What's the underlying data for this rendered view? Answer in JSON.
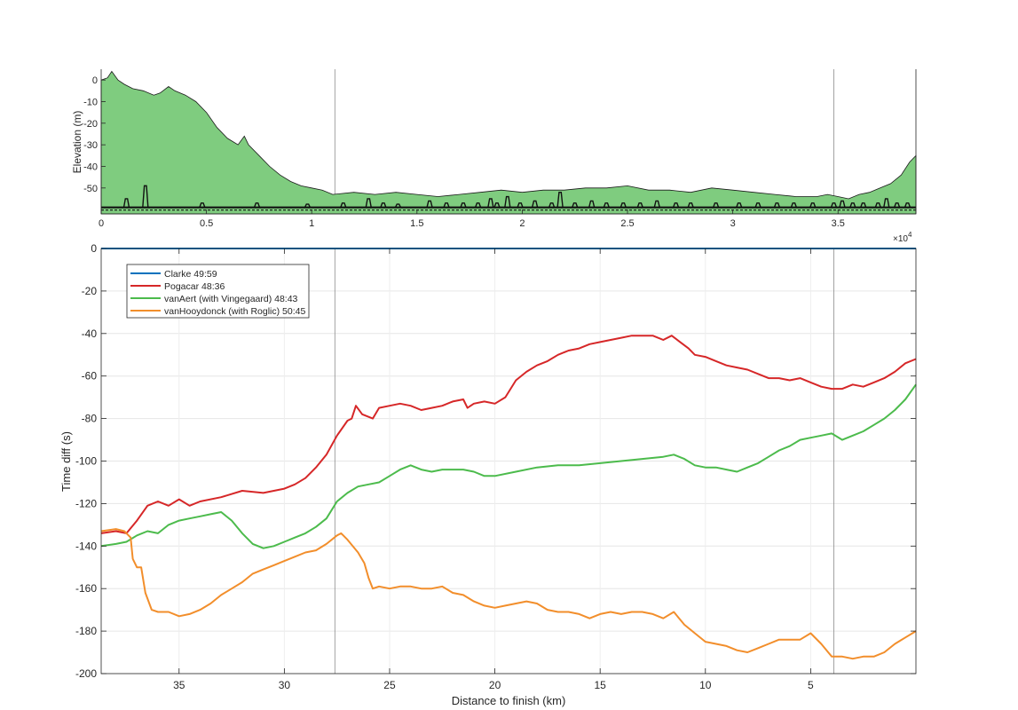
{
  "chart_data": [
    {
      "type": "area",
      "xlabel": "",
      "ylabel": "Elevation (m)",
      "xlim": [
        0,
        38700
      ],
      "ylim": [
        -62,
        5
      ],
      "x_ticks": [
        0,
        5000,
        10000,
        15000,
        20000,
        25000,
        30000,
        35000
      ],
      "x_tick_labels": [
        "0",
        "0.5",
        "1",
        "1.5",
        "2",
        "2.5",
        "3",
        "3.5"
      ],
      "x_exponent_label": "×10",
      "x_exponent_power": "4",
      "y_ticks": [
        0,
        -10,
        -20,
        -30,
        -40,
        -50
      ],
      "y_tick_labels": [
        "0",
        "-10",
        "-20",
        "-30",
        "-40",
        "-50"
      ],
      "colors": {
        "fill": "#7fcc7f",
        "line": "#1a1a1a",
        "markers": "#111111"
      },
      "x": [
        0,
        300,
        500,
        800,
        1100,
        1500,
        2000,
        2500,
        2800,
        3200,
        3500,
        4000,
        4500,
        5000,
        5500,
        6000,
        6500,
        6800,
        7000,
        7500,
        8000,
        8500,
        9000,
        9500,
        10000,
        10500,
        11000,
        12000,
        13000,
        14000,
        15000,
        16000,
        17000,
        18000,
        19000,
        20000,
        21000,
        22000,
        23000,
        24000,
        25000,
        26000,
        27000,
        28000,
        29000,
        30000,
        31000,
        32000,
        33000,
        34000,
        34500,
        35000,
        35500,
        36000,
        36500,
        37000,
        37500,
        38000,
        38400,
        38700
      ],
      "values": [
        0,
        1,
        4,
        0,
        -2,
        -4,
        -5,
        -7,
        -6,
        -3,
        -5,
        -7,
        -10,
        -15,
        -22,
        -27,
        -30,
        -26,
        -30,
        -35,
        -40,
        -44,
        -47,
        -49,
        -50,
        -51,
        -53,
        -52,
        -53,
        -52,
        -53,
        -54,
        -53,
        -52,
        -51,
        -52,
        -51,
        -51,
        -50,
        -50,
        -49,
        -51,
        -51,
        -52,
        -50,
        -51,
        -52,
        -53,
        -54,
        -54,
        -53,
        -54,
        -55,
        -53,
        -52,
        -50,
        -48,
        -44,
        -38,
        -35
      ],
      "marker_baseline": -59,
      "marker_x": [
        1200,
        2100,
        4800,
        7400,
        9800,
        11500,
        12700,
        13400,
        14100,
        15600,
        16400,
        17200,
        17900,
        18500,
        18800,
        19300,
        19900,
        20600,
        21400,
        21800,
        22500,
        23300,
        24000,
        24800,
        25600,
        26400,
        27300,
        28000,
        29200,
        30300,
        31200,
        32100,
        32900,
        33800,
        34800,
        35200,
        35700,
        36200,
        36900,
        37300,
        37800,
        38300
      ],
      "marker_h": [
        4,
        10,
        2,
        2,
        1.5,
        2,
        4,
        2,
        1.5,
        3,
        2,
        2,
        2,
        4,
        2,
        5,
        2,
        3,
        2,
        7,
        2,
        3,
        2,
        2,
        2,
        3,
        2,
        2,
        2,
        2,
        2,
        2,
        2,
        2,
        2,
        3,
        2,
        2,
        2,
        4,
        2,
        2
      ]
    },
    {
      "type": "line",
      "xlabel": "Distance to finish (km)",
      "ylabel": "Time diff (s)",
      "xlim": [
        38.7,
        0
      ],
      "ylim": [
        -200,
        0
      ],
      "x_ticks": [
        35,
        30,
        25,
        20,
        15,
        10,
        5
      ],
      "x_tick_labels": [
        "35",
        "30",
        "25",
        "20",
        "15",
        "10",
        "5"
      ],
      "y_ticks": [
        0,
        -20,
        -40,
        -60,
        -80,
        -100,
        -120,
        -140,
        -160,
        -180,
        -200
      ],
      "y_tick_labels": [
        "0",
        "-20",
        "-40",
        "-60",
        "-80",
        "-100",
        "-120",
        "-140",
        "-160",
        "-180",
        "-200"
      ],
      "grid": true,
      "legend_placement": "top-left",
      "vertical_markers_km": [
        27.6,
        3.9
      ],
      "series": [
        {
          "name": "Clarke 49:59",
          "color": "#0072bd",
          "x": [
            38.7,
            0
          ],
          "y": [
            0,
            0
          ]
        },
        {
          "name": "Pogacar 48:36",
          "color": "#d62728",
          "x": [
            38.7,
            38.0,
            37.5,
            37.0,
            36.5,
            36.0,
            35.5,
            35.0,
            34.5,
            34.0,
            33.0,
            32.0,
            31.0,
            30.0,
            29.5,
            29.0,
            28.5,
            28.0,
            27.5,
            27.0,
            26.8,
            26.6,
            26.3,
            25.8,
            25.5,
            25.0,
            24.5,
            24.0,
            23.5,
            23.0,
            22.5,
            22.0,
            21.5,
            21.3,
            21.0,
            20.5,
            20.0,
            19.5,
            19.0,
            18.5,
            18.0,
            17.5,
            17.0,
            16.5,
            16.0,
            15.5,
            15.0,
            14.5,
            14.0,
            13.5,
            13.0,
            12.5,
            12.0,
            11.6,
            11.2,
            10.8,
            10.5,
            10.0,
            9.5,
            9.0,
            8.5,
            8.0,
            7.5,
            7.0,
            6.5,
            6.0,
            5.5,
            5.0,
            4.5,
            4.0,
            3.5,
            3.0,
            2.5,
            2.0,
            1.5,
            1.0,
            0.5,
            0.0
          ],
          "y": [
            -134,
            -133,
            -134,
            -128,
            -121,
            -119,
            -121,
            -118,
            -121,
            -119,
            -117,
            -114,
            -115,
            -113,
            -111,
            -108,
            -103,
            -97,
            -88,
            -81,
            -80,
            -74,
            -78,
            -80,
            -75,
            -74,
            -73,
            -74,
            -76,
            -75,
            -74,
            -72,
            -71,
            -75,
            -73,
            -72,
            -73,
            -70,
            -62,
            -58,
            -55,
            -53,
            -50,
            -48,
            -47,
            -45,
            -44,
            -43,
            -42,
            -41,
            -41,
            -41,
            -43,
            -41,
            -44,
            -47,
            -50,
            -51,
            -53,
            -55,
            -56,
            -57,
            -59,
            -61,
            -61,
            -62,
            -61,
            -63,
            -65,
            -66,
            -66,
            -64,
            -65,
            -63,
            -61,
            -58,
            -54,
            -52
          ]
        },
        {
          "name": "vanAert (with Vingegaard) 48:43",
          "color": "#4cbb4c",
          "x": [
            38.7,
            38.0,
            37.5,
            37.0,
            36.5,
            36.0,
            35.5,
            35.0,
            34.5,
            34.0,
            33.5,
            33.0,
            32.5,
            32.0,
            31.5,
            31.0,
            30.5,
            30.0,
            29.5,
            29.0,
            28.5,
            28.0,
            27.5,
            27.0,
            26.5,
            26.0,
            25.5,
            25.0,
            24.5,
            24.0,
            23.5,
            23.0,
            22.5,
            22.0,
            21.5,
            21.0,
            20.5,
            20.0,
            19.0,
            18.0,
            17.0,
            16.0,
            15.0,
            14.0,
            13.0,
            12.0,
            11.5,
            11.0,
            10.5,
            10.0,
            9.5,
            9.0,
            8.5,
            8.0,
            7.5,
            7.0,
            6.5,
            6.0,
            5.5,
            5.0,
            4.5,
            4.0,
            3.5,
            3.0,
            2.5,
            2.0,
            1.5,
            1.0,
            0.5,
            0.0
          ],
          "y": [
            -140,
            -139,
            -138,
            -135,
            -133,
            -134,
            -130,
            -128,
            -127,
            -126,
            -125,
            -124,
            -128,
            -134,
            -139,
            -141,
            -140,
            -138,
            -136,
            -134,
            -131,
            -127,
            -119,
            -115,
            -112,
            -111,
            -110,
            -107,
            -104,
            -102,
            -104,
            -105,
            -104,
            -104,
            -104,
            -105,
            -107,
            -107,
            -105,
            -103,
            -102,
            -102,
            -101,
            -100,
            -99,
            -98,
            -97,
            -99,
            -102,
            -103,
            -103,
            -104,
            -105,
            -103,
            -101,
            -98,
            -95,
            -93,
            -90,
            -89,
            -88,
            -87,
            -90,
            -88,
            -86,
            -83,
            -80,
            -76,
            -71,
            -64
          ]
        },
        {
          "name": "vanHooydonck (with Roglic) 50:45",
          "color": "#f28e2b",
          "x": [
            38.7,
            38.0,
            37.6,
            37.3,
            37.2,
            37.0,
            36.8,
            36.6,
            36.3,
            36.0,
            35.5,
            35.0,
            34.5,
            34.0,
            33.5,
            33.0,
            32.5,
            32.0,
            31.5,
            31.0,
            30.5,
            30.0,
            29.5,
            29.0,
            28.5,
            28.0,
            27.5,
            27.3,
            27.0,
            26.5,
            26.2,
            26.0,
            25.8,
            25.5,
            25.0,
            24.5,
            24.0,
            23.5,
            23.0,
            22.5,
            22.0,
            21.5,
            21.0,
            20.5,
            20.0,
            19.5,
            19.0,
            18.5,
            18.0,
            17.5,
            17.0,
            16.5,
            16.0,
            15.5,
            15.0,
            14.5,
            14.0,
            13.5,
            13.0,
            12.5,
            12.0,
            11.5,
            11.0,
            10.5,
            10.0,
            9.5,
            9.0,
            8.5,
            8.0,
            7.5,
            7.0,
            6.5,
            6.0,
            5.5,
            5.0,
            4.5,
            4.0,
            3.5,
            3.0,
            2.5,
            2.0,
            1.5,
            1.0,
            0.5,
            0.0
          ],
          "y": [
            -133,
            -132,
            -133,
            -136,
            -146,
            -150,
            -150,
            -162,
            -170,
            -171,
            -171,
            -173,
            -172,
            -170,
            -167,
            -163,
            -160,
            -157,
            -153,
            -151,
            -149,
            -147,
            -145,
            -143,
            -142,
            -139,
            -135,
            -134,
            -137,
            -143,
            -148,
            -155,
            -160,
            -159,
            -160,
            -159,
            -159,
            -160,
            -160,
            -159,
            -162,
            -163,
            -166,
            -168,
            -169,
            -168,
            -167,
            -166,
            -167,
            -170,
            -171,
            -171,
            -172,
            -174,
            -172,
            -171,
            -172,
            -171,
            -171,
            -172,
            -174,
            -171,
            -177,
            -181,
            -185,
            -186,
            -187,
            -189,
            -190,
            -188,
            -186,
            -184,
            -184,
            -184,
            -181,
            -186,
            -192,
            -192,
            -193,
            -192,
            -192,
            -190,
            -186,
            -183,
            -180
          ]
        }
      ]
    }
  ]
}
